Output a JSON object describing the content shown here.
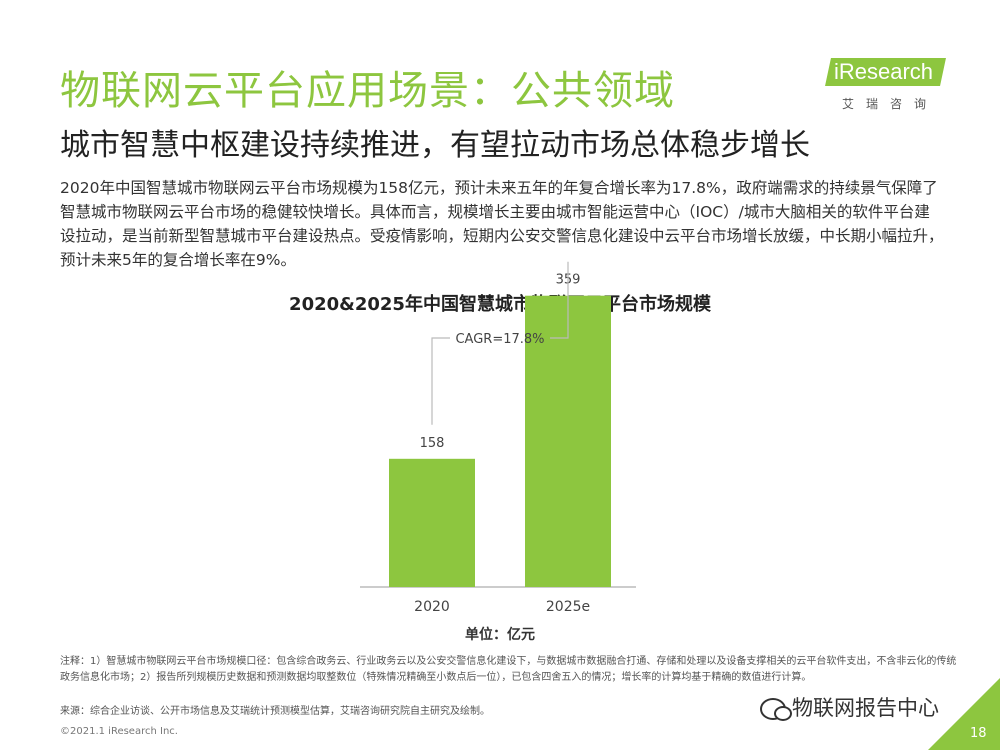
{
  "header": {
    "title": "物联网云平台应用场景：公共领域",
    "subtitle": "城市智慧中枢建设持续推进，有望拉动市场总体稳步增长"
  },
  "logo": {
    "brand": "iResearch",
    "cn": "艾瑞咨询"
  },
  "intro": "2020年中国智慧城市物联网云平台市场规模为158亿元，预计未来五年的年复合增长率为17.8%，政府端需求的持续景气保障了智慧城市物联网云平台市场的稳健较快增长。具体而言，规模增长主要由城市智能运营中心（IOC）/城市大脑相关的软件平台建设拉动，是当前新型智慧城市平台建设热点。受疫情影响，短期内公安交警信息化建设中云平台市场增长放缓，中长期小幅拉升，预计未来5年的复合增长率在9%。",
  "chart_data": {
    "type": "bar",
    "title": "2020&2025年中国智慧城市物联网云平台市场规模",
    "categories": [
      "2020",
      "2025e"
    ],
    "values": [
      158,
      359
    ],
    "data_labels": [
      "158",
      "359"
    ],
    "annotation": "CAGR=17.8%",
    "unit_label": "单位：亿元",
    "ylim": [
      0,
      440
    ],
    "bar_color": "#8dc63f",
    "grid": false,
    "legend": "none"
  },
  "footer": {
    "note": "注释：1）智慧城市物联网云平台市场规模口径：包含综合政务云、行业政务云以及公安交警信息化建设下，与数据城市数据融合打通、存储和处理以及设备支撑相关的云平台软件支出，不含非云化的传统政务信息化市场；2）报告所列规模历史数据和预测数据均取整数位（特殊情况精确至小数点后一位），已包含四舍五入的情况；增长率的计算均基于精确的数值进行计算。",
    "source": "来源：综合企业访谈、公开市场信息及艾瑞统计预测模型估算，艾瑞咨询研究院自主研究及绘制。",
    "copyright": "©2021.1 iResearch Inc.",
    "page": "18",
    "watermark": "物联网报告中心"
  },
  "colors": {
    "accent": "#8dc63f",
    "bracket": "#bbbbbb",
    "axis": "#999999"
  }
}
